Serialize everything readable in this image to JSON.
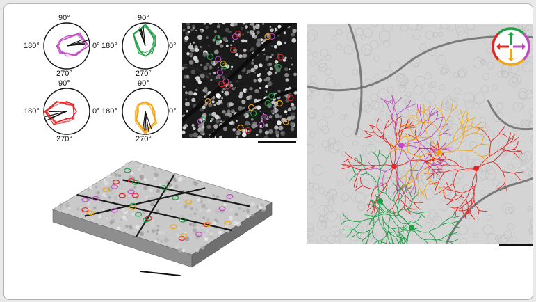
{
  "figure": {
    "tuning_plots": [
      {
        "name": "magenta",
        "color": "#c04bc0",
        "angles": [
          "90°",
          "180°",
          "0°",
          "270°"
        ]
      },
      {
        "name": "green",
        "color": "#1f9e45",
        "angles": [
          "90°",
          "180°",
          "0°",
          "270°"
        ]
      },
      {
        "name": "red",
        "color": "#e02525",
        "angles": [
          "90°",
          "180°",
          "0°",
          "270°"
        ]
      },
      {
        "name": "orange",
        "color": "#f0a515",
        "angles": [
          "90°",
          "180°",
          "0°",
          "270°"
        ]
      }
    ],
    "direction_key": {
      "up_color": "#1f9e45",
      "left_color": "#e02525",
      "right_color": "#c04bc0",
      "down_color": "#f0a515"
    }
  }
}
